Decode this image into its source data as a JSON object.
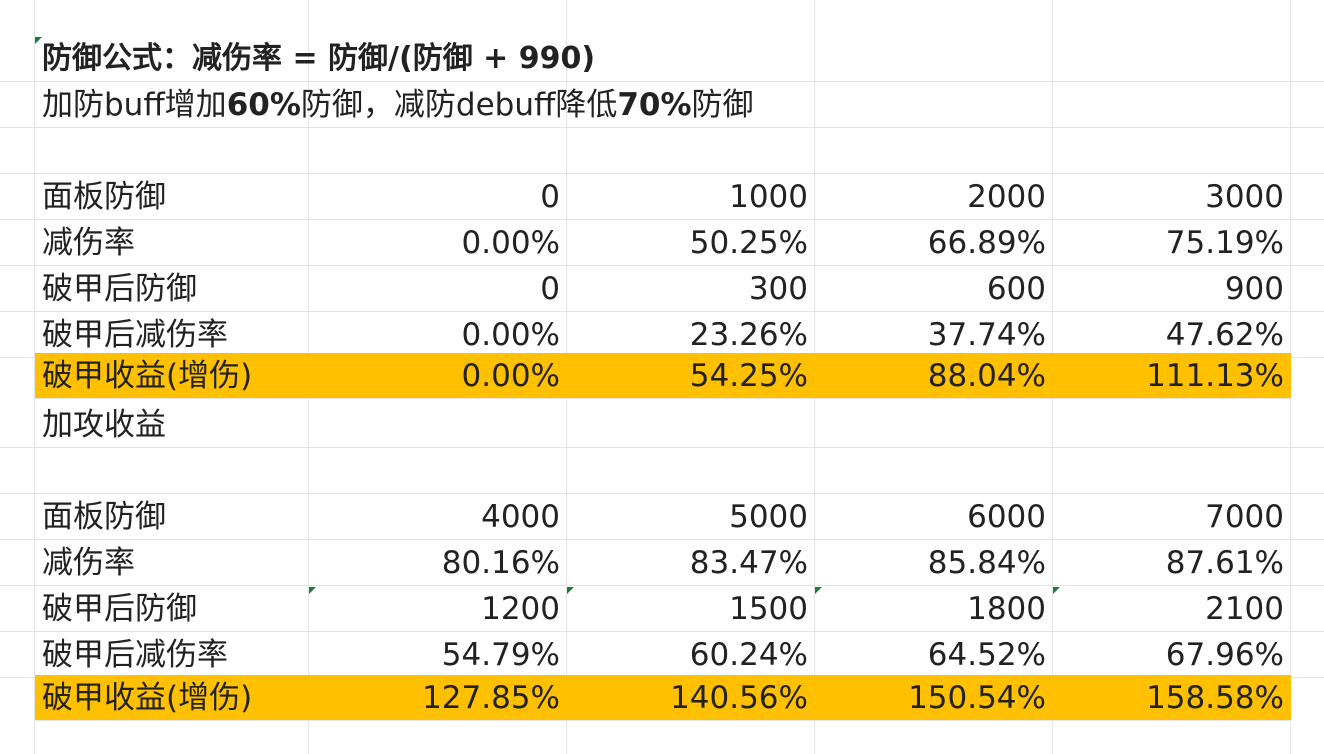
{
  "header": {
    "formula": "防御公式：减伤率 = 防御/(防御 + 990)",
    "note_prefix": "加防buff增加",
    "note_val1": "60%",
    "note_mid": "防御，减防debuff降低",
    "note_val2": "70%",
    "note_suffix": "防御"
  },
  "table1": {
    "rows": [
      {
        "label": "面板防御",
        "values": [
          "0",
          "1000",
          "2000",
          "3000"
        ]
      },
      {
        "label": "减伤率",
        "values": [
          "0.00%",
          "50.25%",
          "66.89%",
          "75.19%"
        ]
      },
      {
        "label": "破甲后防御",
        "values": [
          "0",
          "300",
          "600",
          "900"
        ]
      },
      {
        "label": "破甲后减伤率",
        "values": [
          "0.00%",
          "23.26%",
          "37.74%",
          "47.62%"
        ]
      },
      {
        "label": "破甲收益(增伤)",
        "values": [
          "0.00%",
          "54.25%",
          "88.04%",
          "111.13%"
        ]
      }
    ]
  },
  "section_label": "加攻收益",
  "table2": {
    "rows": [
      {
        "label": "面板防御",
        "values": [
          "4000",
          "5000",
          "6000",
          "7000"
        ]
      },
      {
        "label": "减伤率",
        "values": [
          "80.16%",
          "83.47%",
          "85.84%",
          "87.61%"
        ]
      },
      {
        "label": "破甲后防御",
        "values": [
          "1200",
          "1500",
          "1800",
          "2100"
        ]
      },
      {
        "label": "破甲后减伤率",
        "values": [
          "54.79%",
          "60.24%",
          "64.52%",
          "67.96%"
        ]
      },
      {
        "label": "破甲收益(增伤)",
        "values": [
          "127.85%",
          "140.56%",
          "150.54%",
          "158.58%"
        ]
      }
    ]
  },
  "colors": {
    "highlight": "#ffc000",
    "gridline": "#e4e4e4",
    "comment_marker": "#1e7a3a"
  }
}
